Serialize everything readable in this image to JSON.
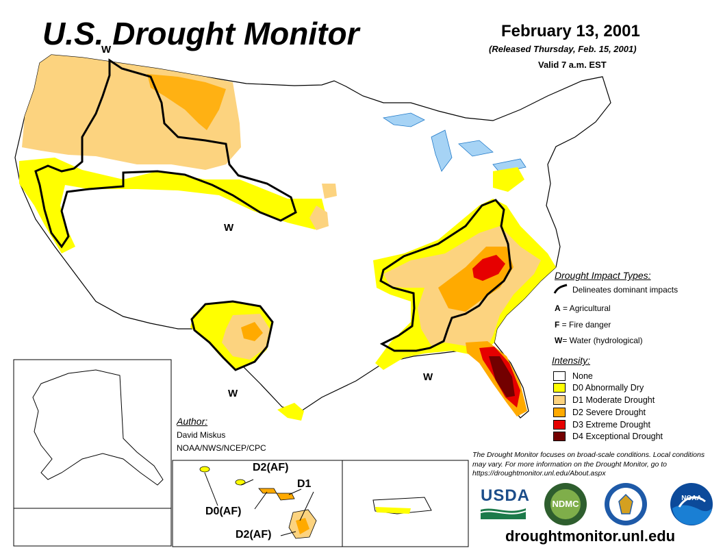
{
  "header": {
    "title": "U.S. Drought Monitor",
    "title_w": "W",
    "date": "February 13, 2001",
    "released": "(Released Thursday, Feb. 15, 2001)",
    "valid": "Valid 7 a.m. EST"
  },
  "map": {
    "w_labels": [
      "W",
      "W",
      "W"
    ]
  },
  "hawaii": {
    "labels": [
      "D2(AF)",
      "D1",
      "D0(AF)",
      "D2(AF)"
    ]
  },
  "legend": {
    "impact_title": "Drought Impact Types:",
    "impact_line_label": "Delineates dominant impacts",
    "impacts": [
      {
        "code": "A",
        "label": " = Agricultural"
      },
      {
        "code": "F",
        "label": " = Fire danger"
      },
      {
        "code": "W",
        "label": "= Water (hydrological)"
      }
    ],
    "intensity_title": "Intensity:",
    "intensity": [
      {
        "label": "None",
        "color": "#ffffff"
      },
      {
        "label": "D0 Abnormally Dry",
        "color": "#ffff00"
      },
      {
        "label": "D1 Moderate Drought",
        "color": "#fcd37f"
      },
      {
        "label": "D2 Severe Drought",
        "color": "#ffaa00"
      },
      {
        "label": "D3 Extreme Drought",
        "color": "#e60000"
      },
      {
        "label": "D4 Exceptional Drought",
        "color": "#730000"
      }
    ]
  },
  "author": {
    "heading": "Author:",
    "name": "David Miskus",
    "org": "NOAA/NWS/NCEP/CPC"
  },
  "note": "The Drought Monitor focuses on broad-scale conditions. Local conditions may vary. For more information on the Drought Monitor, go to https://droughtmonitor.unl.edu/About.aspx",
  "logos": {
    "usda": "USDA",
    "ndmc": "NDMC",
    "noaa": "NOAA"
  },
  "footer_url": "droughtmonitor.unl.edu"
}
